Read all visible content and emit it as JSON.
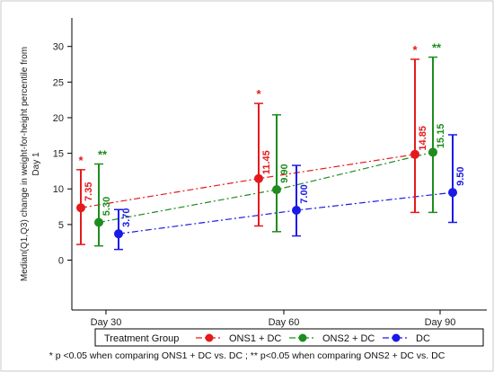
{
  "chart_data": {
    "type": "scatter",
    "ylabel_lines": [
      "Median(Q1,Q3) change in weight-for-height percentile from",
      "Day 1"
    ],
    "ylim": [
      -7,
      34
    ],
    "yticks": [
      0,
      5,
      10,
      15,
      20,
      25,
      30
    ],
    "categories": [
      "Day 30",
      "Day 60",
      "Day 90"
    ],
    "legend": {
      "title": "Treatment Group",
      "placement": "bottom"
    },
    "footnote": "* p <0.05 when comparing ONS1 + DC vs. DC ; ** p<0.05 when comparing ONS2 + DC vs. DC",
    "series": [
      {
        "name": "ONS1 + DC",
        "color": "#e41a1c",
        "median": [
          7.35,
          11.45,
          14.85
        ],
        "q1": [
          2.2,
          4.8,
          6.7
        ],
        "q3": [
          12.7,
          22.0,
          28.2
        ],
        "labels": [
          "7.35",
          "11.45",
          "14.85"
        ],
        "marks": [
          "*",
          "*",
          "*"
        ]
      },
      {
        "name": "ONS2 + DC",
        "color": "#1e8c1e",
        "median": [
          5.3,
          9.9,
          15.15
        ],
        "q1": [
          2.0,
          4.0,
          6.7
        ],
        "q3": [
          13.5,
          20.4,
          28.5
        ],
        "labels": [
          "5.30",
          "9.90",
          "15.15"
        ],
        "marks": [
          "**",
          "",
          "**"
        ]
      },
      {
        "name": "DC",
        "color": "#1a1ae6",
        "median": [
          3.7,
          7.0,
          9.5
        ],
        "q1": [
          1.5,
          3.4,
          5.3
        ],
        "q3": [
          7.1,
          13.3,
          17.6
        ],
        "labels": [
          "3.70",
          "7.00",
          "9.50"
        ],
        "marks": [
          "",
          "",
          ""
        ]
      }
    ]
  }
}
